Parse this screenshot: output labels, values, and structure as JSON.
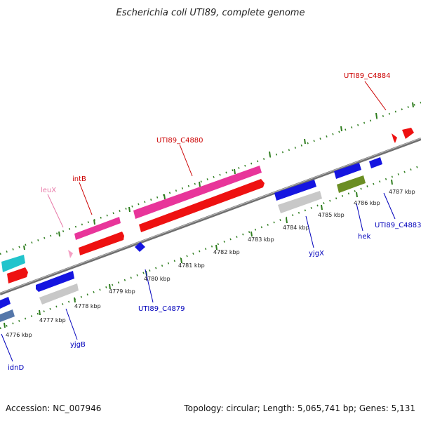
{
  "title": "Escherichia coli UTI89, complete genome",
  "footer": {
    "accession": "Accession: NC_007946",
    "topology": "Topology: circular; Length: 5,065,741 bp; Genes: 5,131"
  },
  "colors": {
    "backbone": "#8c8c8c",
    "tick": "#2e7d1e",
    "forward_label": "#cc0000",
    "reverse_label": "#0000bb",
    "trna_label": "#e87aa8"
  },
  "scale": {
    "labels": [
      "4776 kbp",
      "4777 kbp",
      "4778 kbp",
      "4779 kbp",
      "4780 kbp",
      "4781 kbp",
      "4782 kbp",
      "4783 kbp",
      "4784 kbp",
      "4785 kbp",
      "4786 kbp",
      "4787 kbp"
    ]
  },
  "labels": {
    "forward": [
      "UTI89_C4884",
      "UTI89_C4880",
      "intB",
      "leuX"
    ],
    "reverse": [
      "yjgB",
      "idnD",
      "UTI89_C4879",
      "yjgX",
      "hek",
      "UTI89_C4883"
    ]
  }
}
